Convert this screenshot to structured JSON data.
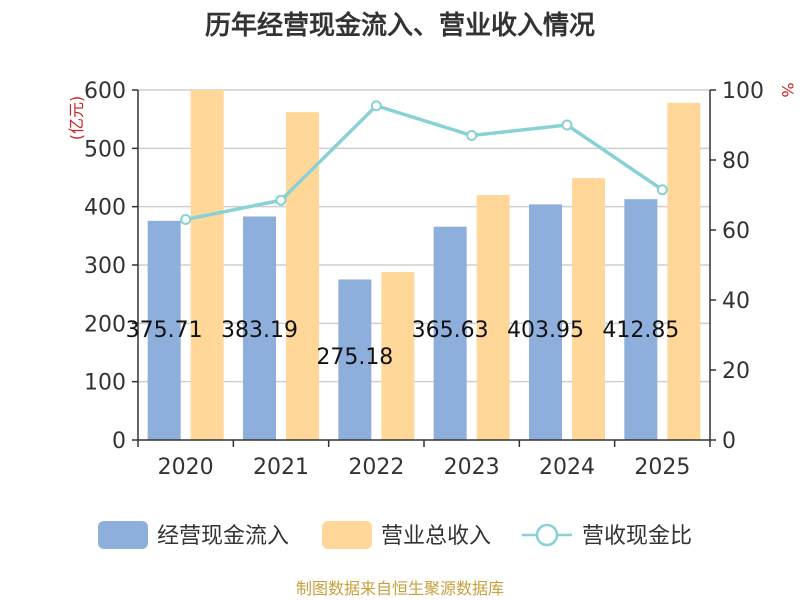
{
  "chart_data": {
    "type": "bar",
    "title": "历年经营现金流入、营业收入情况",
    "categories": [
      "2020",
      "2021",
      "2022",
      "2023",
      "2024",
      "2025"
    ],
    "y_left": {
      "unit": "(亿元)",
      "range": [
        0,
        600
      ],
      "ticks": [
        0,
        100,
        200,
        300,
        400,
        500,
        600
      ]
    },
    "y_right": {
      "unit": "%",
      "range": [
        0,
        100
      ],
      "ticks": [
        0,
        20,
        40,
        60,
        80,
        100
      ]
    },
    "series": [
      {
        "name": "经营现金流入",
        "type": "bar",
        "axis": "left",
        "color": "#8eaedb",
        "values": [
          375.71,
          383.19,
          275.18,
          365.63,
          403.95,
          412.85
        ],
        "labels": [
          "375.71",
          "383.19",
          "275.18",
          "365.63",
          "403.95",
          "412.85"
        ]
      },
      {
        "name": "营业总收入",
        "type": "bar",
        "axis": "left",
        "color": "#ffd899",
        "values": [
          600,
          562,
          288,
          420,
          449,
          578
        ]
      },
      {
        "name": "营收现金比",
        "type": "line",
        "axis": "right",
        "color": "#88d2d6",
        "values": [
          63,
          68.5,
          95.5,
          87,
          90,
          71.5
        ]
      }
    ],
    "grid": true,
    "legend_position": "bottom"
  },
  "source_text": "制图数据来自恒生聚源数据库"
}
